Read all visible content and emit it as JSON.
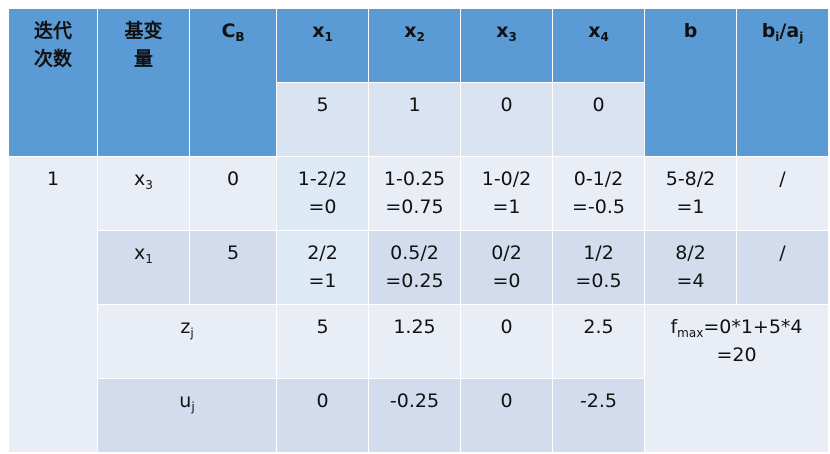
{
  "header": {
    "iteration": "迭代次数",
    "basic_var": "基变量",
    "cb": {
      "main": "C",
      "sub": "B"
    },
    "x1": {
      "main": "x",
      "sub": "1"
    },
    "x2": {
      "main": "x",
      "sub": "2"
    },
    "x3": {
      "main": "x",
      "sub": "3"
    },
    "x4": {
      "main": "x",
      "sub": "4"
    },
    "b": "b",
    "ratio": {
      "b": "b",
      "bsub": "i",
      "slash": "/a",
      "asub": "j"
    }
  },
  "cost_row": [
    "5",
    "1",
    "0",
    "0"
  ],
  "iteration_no": "1",
  "rows": [
    {
      "var": {
        "main": "x",
        "sub": "3"
      },
      "cb": "0",
      "coef": [
        {
          "l1": "1-2/2",
          "l2": "=0"
        },
        {
          "l1": "1-0.25",
          "l2": "=0.75"
        },
        {
          "l1": "1-0/2",
          "l2": "=1"
        },
        {
          "l1": "0-1/2",
          "l2": "=-0.5"
        }
      ],
      "b": {
        "l1": "5-8/2",
        "l2": "=1"
      },
      "ratio": "/"
    },
    {
      "var": {
        "main": "x",
        "sub": "1"
      },
      "cb": "5",
      "coef": [
        {
          "l1": "2/2",
          "l2": "=1"
        },
        {
          "l1": "0.5/2",
          "l2": "=0.25"
        },
        {
          "l1": "0/2",
          "l2": "=0"
        },
        {
          "l1": "1/2",
          "l2": "=0.5"
        }
      ],
      "b": {
        "l1": "8/2",
        "l2": "=4"
      },
      "ratio": "/"
    }
  ],
  "zj": {
    "label": {
      "main": "z",
      "sub": "j"
    },
    "values": [
      "5",
      "1.25",
      "0",
      "2.5"
    ]
  },
  "uj": {
    "label": {
      "main": "u",
      "sub": "j"
    },
    "values": [
      "0",
      "-0.25",
      "0",
      "-2.5"
    ]
  },
  "fmax": {
    "main": "f",
    "sub": "max",
    "l1": "=0*1+5*4",
    "l2": "=20"
  },
  "colors": {
    "header_blue": "#5b9bd5",
    "row_light": "#e9eef6",
    "row_medium": "#d3dcec",
    "highlight": "#dde9f5"
  }
}
